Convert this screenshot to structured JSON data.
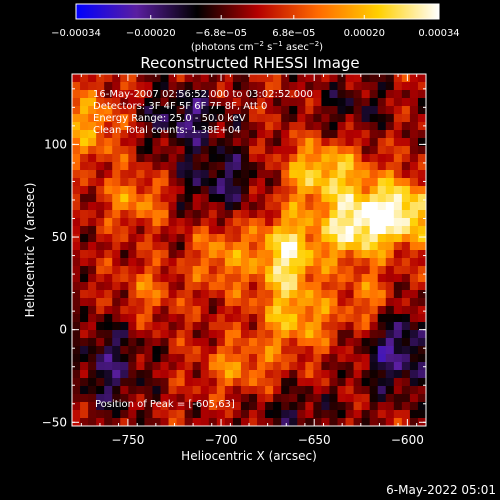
{
  "chart_data": {
    "type": "heatmap",
    "title": "Reconstructed RHESSI Image",
    "xlabel": "Heliocentric X (arcsec)",
    "ylabel": "Heliocentric Y (arcsec)",
    "xlim": [
      -780,
      -590
    ],
    "ylim": [
      -52,
      138
    ],
    "x_ticks": [
      -750,
      -700,
      -650,
      -600
    ],
    "y_ticks": [
      -50,
      0,
      50,
      100
    ],
    "x_tick_labels": [
      "−750",
      "−700",
      "−650",
      "−600"
    ],
    "y_tick_labels": [
      "−50",
      "0",
      "50",
      "100"
    ],
    "colorbar": {
      "ticks": [
        -0.00034,
        -0.0002,
        -6.8e-05,
        6.8e-05,
        0.0002,
        0.00034
      ],
      "tick_labels": [
        "−0.00034",
        "−0.00020",
        "−6.8e−05",
        "6.8e−05",
        "0.00020",
        "0.00034"
      ],
      "unit_label": "(photons cm",
      "unit_sup1": "−2",
      "unit_mid1": " s",
      "unit_sup2": "−1",
      "unit_mid2": " asec",
      "unit_sup3": "−2",
      "unit_end": ")",
      "colors": [
        "#0000ff",
        "#5a1ea0",
        "#000000",
        "#b40000",
        "#ff6a00",
        "#ffd000",
        "#ffffff"
      ]
    },
    "annotations": [
      "16-May-2007 02:56:52.000 to 03:02:52.000",
      "Detectors: 3F 4F 5F 6F 7F 8F, Att 0",
      "Energy Range: 25.0 - 50.0 keV",
      "Clean     Total counts: 1.38E+04"
    ],
    "peak_label": "Position of Peak = [-605,63]",
    "peak_position": [
      -605,
      63
    ],
    "value_range": [
      -0.00034,
      0.00034
    ],
    "blobs": [
      {
        "x": -605,
        "y": 63,
        "amp": 1.0,
        "sx": 14,
        "sy": 12
      },
      {
        "x": -630,
        "y": 55,
        "amp": 0.8,
        "sx": 12,
        "sy": 12
      },
      {
        "x": -665,
        "y": 40,
        "amp": 0.85,
        "sx": 12,
        "sy": 16
      },
      {
        "x": -645,
        "y": 85,
        "amp": 0.7,
        "sx": 16,
        "sy": 12
      },
      {
        "x": -660,
        "y": 5,
        "amp": 0.5,
        "sx": 14,
        "sy": 12
      },
      {
        "x": -620,
        "y": 15,
        "amp": 0.4,
        "sx": 12,
        "sy": 12
      },
      {
        "x": -700,
        "y": 40,
        "amp": 0.45,
        "sx": 10,
        "sy": 14
      },
      {
        "x": -745,
        "y": 70,
        "amp": 0.45,
        "sx": 12,
        "sy": 10
      },
      {
        "x": -770,
        "y": 110,
        "amp": 0.5,
        "sx": 12,
        "sy": 14
      },
      {
        "x": -690,
        "y": -20,
        "amp": 0.4,
        "sx": 14,
        "sy": 10
      },
      {
        "x": -740,
        "y": 20,
        "amp": 0.3,
        "sx": 12,
        "sy": 12
      },
      {
        "x": -700,
        "y": 80,
        "amp": -0.45,
        "sx": 18,
        "sy": 14
      },
      {
        "x": -720,
        "y": 115,
        "amp": -0.5,
        "sx": 16,
        "sy": 12
      },
      {
        "x": -760,
        "y": -20,
        "amp": -0.45,
        "sx": 14,
        "sy": 20
      },
      {
        "x": -605,
        "y": -10,
        "amp": -0.6,
        "sx": 14,
        "sy": 18
      },
      {
        "x": -630,
        "y": 120,
        "amp": -0.3,
        "sx": 16,
        "sy": 12
      },
      {
        "x": -660,
        "y": -45,
        "amp": -0.3,
        "sx": 18,
        "sy": 10
      }
    ],
    "footer": "6-May-2022 05:01"
  }
}
